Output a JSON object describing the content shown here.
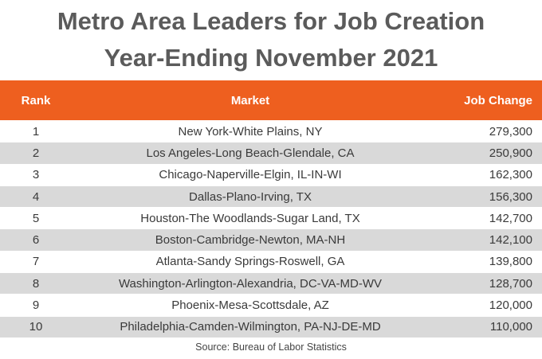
{
  "title": {
    "line1": "Metro Area Leaders for Job Creation",
    "line2": "Year-Ending November 2021"
  },
  "table": {
    "columns": [
      "Rank",
      "Market",
      "Job Change"
    ],
    "rows": [
      [
        "1",
        "New York-White Plains, NY",
        "279,300"
      ],
      [
        "2",
        "Los Angeles-Long Beach-Glendale, CA",
        "250,900"
      ],
      [
        "3",
        "Chicago-Naperville-Elgin, IL-IN-WI",
        "162,300"
      ],
      [
        "4",
        "Dallas-Plano-Irving, TX",
        "156,300"
      ],
      [
        "5",
        "Houston-The Woodlands-Sugar Land, TX",
        "142,700"
      ],
      [
        "6",
        "Boston-Cambridge-Newton, MA-NH",
        "142,100"
      ],
      [
        "7",
        "Atlanta-Sandy Springs-Roswell, GA",
        "139,800"
      ],
      [
        "8",
        "Washington-Arlington-Alexandria, DC-VA-MD-WV",
        "128,700"
      ],
      [
        "9",
        "Phoenix-Mesa-Scottsdale, AZ",
        "120,000"
      ],
      [
        "10",
        "Philadelphia-Camden-Wilmington, PA-NJ-DE-MD",
        "110,000"
      ]
    ]
  },
  "source": "Source: Bureau of Labor Statistics"
}
